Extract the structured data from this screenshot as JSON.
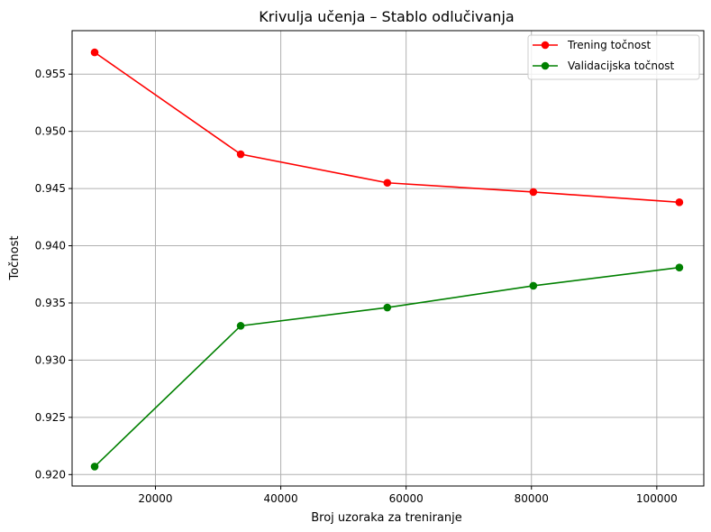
{
  "chart_data": {
    "type": "line",
    "title": "Krivulja učenja – Stablo odlučivanja",
    "xlabel": "Broj uzoraka za treniranje",
    "ylabel": "Točnost",
    "xlim": [
      6700,
      107500
    ],
    "ylim": [
      0.919,
      0.9588
    ],
    "xticks": [
      20000,
      40000,
      60000,
      80000,
      100000
    ],
    "yticks": [
      0.92,
      0.925,
      0.93,
      0.935,
      0.94,
      0.945,
      0.95,
      0.955
    ],
    "xtick_labels": [
      "20000",
      "40000",
      "60000",
      "80000",
      "100000"
    ],
    "ytick_labels": [
      "0.920",
      "0.925",
      "0.930",
      "0.935",
      "0.940",
      "0.945",
      "0.950",
      "0.955"
    ],
    "grid": true,
    "legend_position": "top-right",
    "x": [
      10300,
      33600,
      57000,
      80300,
      103600
    ],
    "series": [
      {
        "name": "Trening točnost",
        "color": "#ff0000",
        "values": [
          0.9569,
          0.948,
          0.9455,
          0.9447,
          0.9438
        ]
      },
      {
        "name": "Validacijska točnost",
        "color": "#008000",
        "values": [
          0.9207,
          0.933,
          0.9346,
          0.9365,
          0.9381
        ]
      }
    ]
  }
}
